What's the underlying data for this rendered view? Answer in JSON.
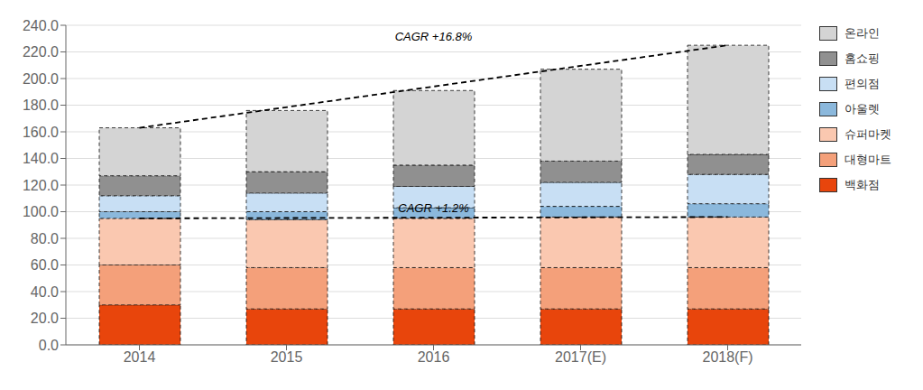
{
  "chart_data": {
    "type": "bar",
    "stacked": true,
    "categories": [
      "2014",
      "2015",
      "2016",
      "2017(E)",
      "2018(F)"
    ],
    "series": [
      {
        "name": "백화점",
        "color": "#E8450C",
        "values": [
          30,
          27,
          27,
          27,
          27
        ]
      },
      {
        "name": "대형마트",
        "color": "#F4A07A",
        "values": [
          30,
          31,
          31,
          31,
          31
        ]
      },
      {
        "name": "슈퍼마켓",
        "color": "#FAC8B0",
        "values": [
          35,
          36,
          37,
          38,
          38
        ]
      },
      {
        "name": "아울렛",
        "color": "#8BB8DC",
        "values": [
          5,
          6,
          8,
          8,
          10
        ]
      },
      {
        "name": "편의점",
        "color": "#C8DFF4",
        "values": [
          12,
          14,
          16,
          18,
          22
        ]
      },
      {
        "name": "홈쇼핑",
        "color": "#909090",
        "values": [
          15,
          16,
          16,
          16,
          15
        ]
      },
      {
        "name": "온라인",
        "color": "#D4D4D4",
        "values": [
          36,
          46,
          56,
          69,
          82
        ]
      }
    ],
    "ylim": [
      0,
      240
    ],
    "yticks": [
      {
        "value": 0,
        "label": "0.0"
      },
      {
        "value": 20,
        "label": "20.0"
      },
      {
        "value": 40,
        "label": "40.0"
      },
      {
        "value": 60,
        "label": "60.0"
      },
      {
        "value": 80,
        "label": "80.0"
      },
      {
        "value": 100,
        "label": "100.0"
      },
      {
        "value": 120,
        "label": "120.0"
      },
      {
        "value": 140,
        "label": "140.0"
      },
      {
        "value": 160,
        "label": "160.0"
      },
      {
        "value": 180,
        "label": "180.0"
      },
      {
        "value": 200,
        "label": "200.0"
      },
      {
        "value": 220,
        "label": "220.0"
      },
      {
        "value": 240,
        "label": "240.0"
      }
    ],
    "annotations": [
      "CAGR +16.8%",
      "CAGR +1.2%"
    ],
    "grid": true,
    "legend": "right"
  }
}
